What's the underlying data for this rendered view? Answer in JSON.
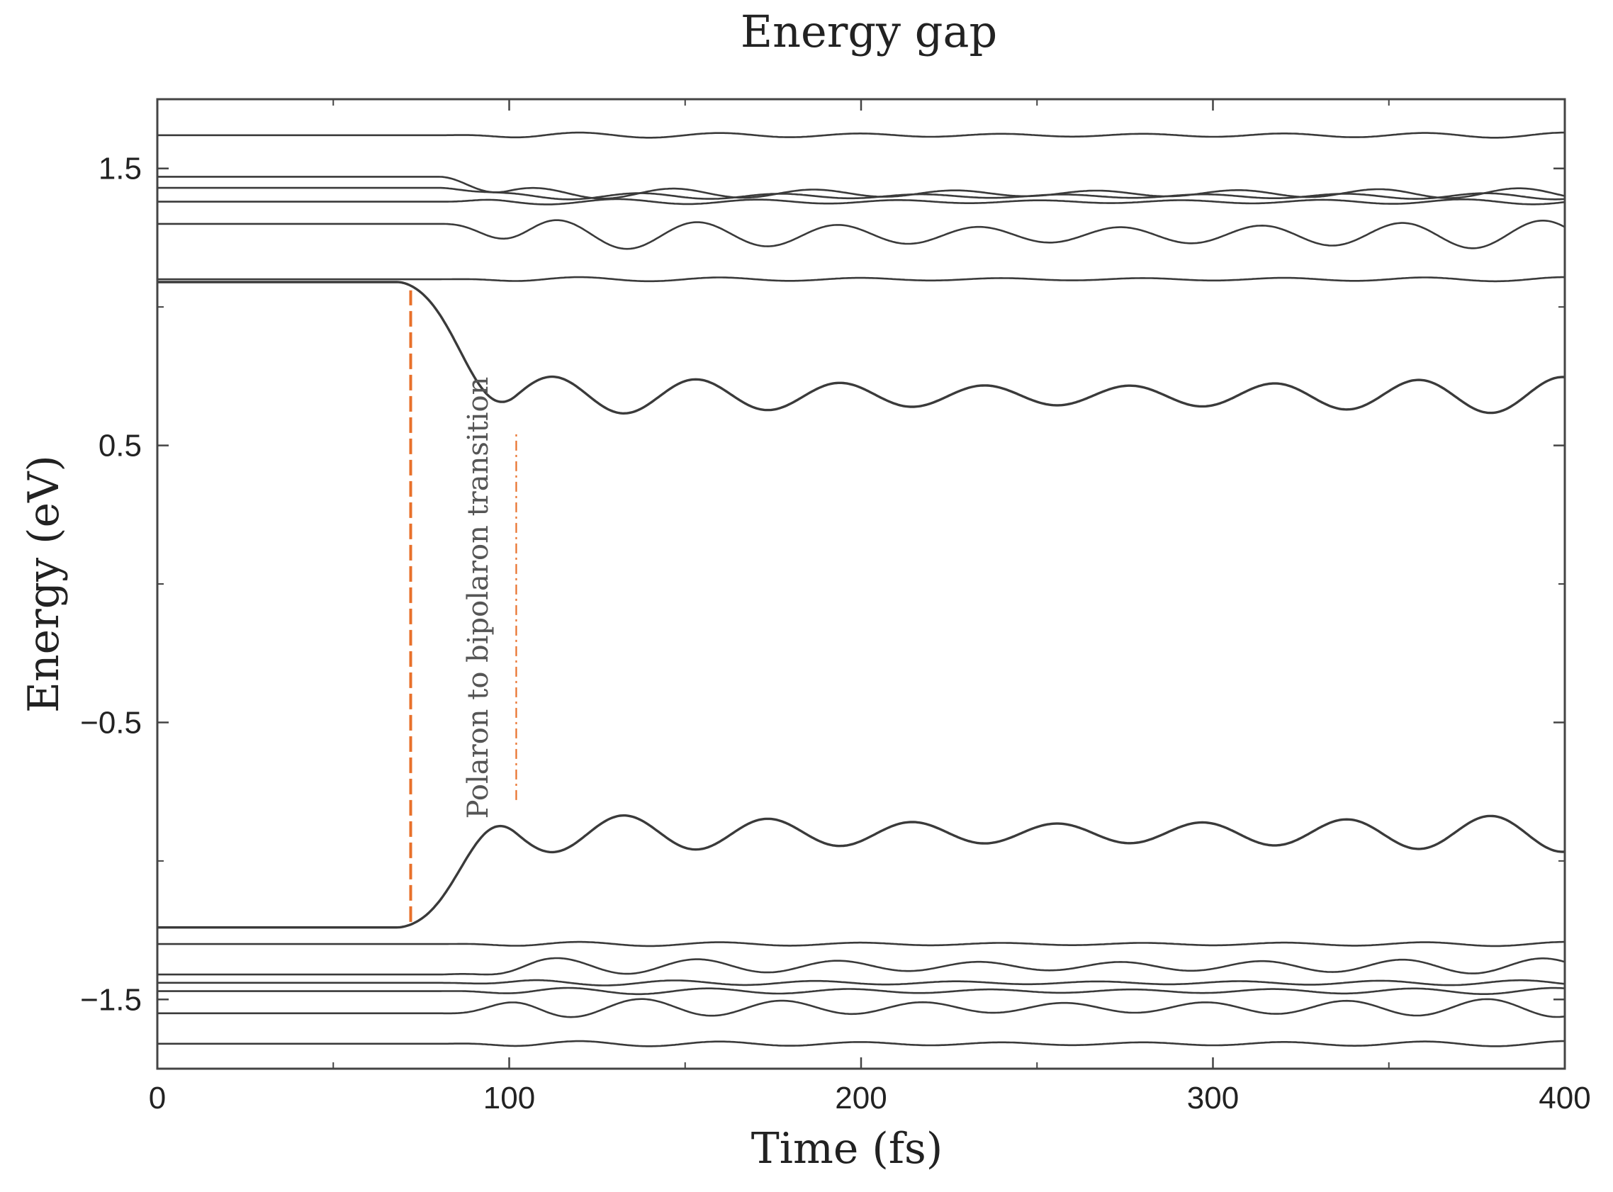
{
  "chart_data": {
    "type": "line",
    "title": "Energy gap",
    "xlabel": "Time (fs)",
    "ylabel": "Energy (eV)",
    "xlim": [
      0,
      400
    ],
    "ylim": [
      -1.75,
      1.75
    ],
    "xticks": [
      0,
      100,
      200,
      300,
      400
    ],
    "xtick_labels": [
      "0",
      "100",
      "200",
      "300",
      "400"
    ],
    "yticks": [
      1.5,
      0.5,
      -0.5,
      -1.5
    ],
    "ytick_labels": [
      "1.5",
      "0.5",
      "−0.5",
      "−1.5"
    ],
    "annotations": [
      {
        "text": "Polaron to bipolaron transition",
        "x": 91,
        "y": -0.05,
        "orientation": "vertical"
      }
    ],
    "markers": [
      {
        "name": "transition-start",
        "x": 72,
        "y_from": -1.22,
        "y_to": 1.06,
        "color": "#e8702a",
        "style": "dashed"
      },
      {
        "name": "transition-end",
        "x": 102,
        "y_from": -0.78,
        "y_to": 0.55,
        "color": "#e8702a",
        "style": "dashdot"
      }
    ],
    "series": [
      {
        "name": "level-u1",
        "base": 1.62,
        "start": 1.62,
        "transition": [
          80,
          110
        ],
        "amp": 0.01,
        "period": 40,
        "phase": 0
      },
      {
        "name": "level-u2",
        "base": 1.41,
        "start": 1.47,
        "transition": [
          80,
          100
        ],
        "amp": 0.02,
        "period": 40,
        "phase": 0.5
      },
      {
        "name": "level-u3",
        "base": 1.4,
        "start": 1.43,
        "transition": [
          80,
          100
        ],
        "amp": 0.012,
        "period": 40,
        "phase": 2.0
      },
      {
        "name": "level-u4",
        "base": 1.38,
        "start": 1.38,
        "transition": [
          80,
          100
        ],
        "amp": 0.01,
        "period": 40,
        "phase": 3.0
      },
      {
        "name": "level-u5",
        "base": 1.26,
        "start": 1.3,
        "transition": [
          80,
          110
        ],
        "amp": 0.055,
        "period": 40,
        "phase": 1.0
      },
      {
        "name": "level-u6",
        "base": 1.1,
        "start": 1.1,
        "transition": [
          80,
          110
        ],
        "amp": 0.008,
        "period": 40,
        "phase": 0
      },
      {
        "name": "level-upper-gap",
        "base": 0.68,
        "start": 1.09,
        "transition": [
          68,
          102
        ],
        "amp": 0.07,
        "period": 41,
        "phase": 0,
        "emphasis": true
      },
      {
        "name": "level-lower-gap",
        "base": -0.9,
        "start": -1.24,
        "transition": [
          68,
          102
        ],
        "amp": 0.07,
        "period": 41,
        "phase": 3.14159,
        "emphasis": true
      },
      {
        "name": "level-l1",
        "base": -1.3,
        "start": -1.3,
        "transition": [
          80,
          110
        ],
        "amp": 0.008,
        "period": 40,
        "phase": 0
      },
      {
        "name": "level-l2",
        "base": -1.38,
        "start": -1.41,
        "transition": [
          80,
          110
        ],
        "amp": 0.03,
        "period": 40,
        "phase": 1.0
      },
      {
        "name": "level-l3",
        "base": -1.44,
        "start": -1.44,
        "transition": [
          80,
          110
        ],
        "amp": 0.01,
        "period": 40,
        "phase": 2.0
      },
      {
        "name": "level-l4",
        "base": -1.47,
        "start": -1.47,
        "transition": [
          80,
          110
        ],
        "amp": 0.012,
        "period": 40,
        "phase": 0.5
      },
      {
        "name": "level-l5",
        "base": -1.53,
        "start": -1.55,
        "transition": [
          80,
          110
        ],
        "amp": 0.035,
        "period": 40,
        "phase": 3.5
      },
      {
        "name": "level-l6",
        "base": -1.66,
        "start": -1.66,
        "transition": [
          80,
          110
        ],
        "amp": 0.01,
        "period": 40,
        "phase": 0
      }
    ]
  }
}
